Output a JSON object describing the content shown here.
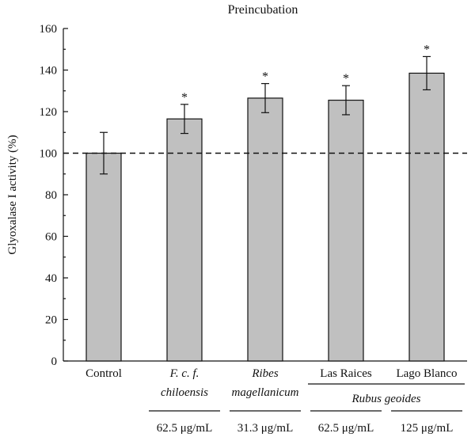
{
  "chart_data": {
    "type": "bar",
    "title": "Preincubation",
    "ylabel": "Glyoxalase I activity (%)",
    "ylim": [
      0,
      160
    ],
    "yticks": [
      0,
      20,
      40,
      60,
      80,
      100,
      120,
      140,
      160
    ],
    "reference_line": 100,
    "categories": [
      {
        "line1": "Control",
        "line1_italic": false,
        "line2": "",
        "dose": ""
      },
      {
        "line1": "F. c. f.",
        "line1_italic": true,
        "line2": "chiloensis",
        "dose": "62.5 μg/mL"
      },
      {
        "line1": "Ribes",
        "line1_italic": true,
        "line2": "magellanicum",
        "dose": "31.3 μg/mL"
      },
      {
        "line1": "Las Raices",
        "line1_italic": false,
        "line2": "",
        "dose": "62.5 μg/mL"
      },
      {
        "line1": "Lago Blanco",
        "line1_italic": false,
        "line2": "",
        "dose": "125 μg/mL"
      }
    ],
    "group_label": "Rubus geoides",
    "values": [
      100,
      116.5,
      126.5,
      125.5,
      138.5
    ],
    "errors": [
      10,
      7,
      7,
      7,
      8
    ],
    "significance": [
      "",
      "*",
      "*",
      "*",
      "*"
    ]
  }
}
